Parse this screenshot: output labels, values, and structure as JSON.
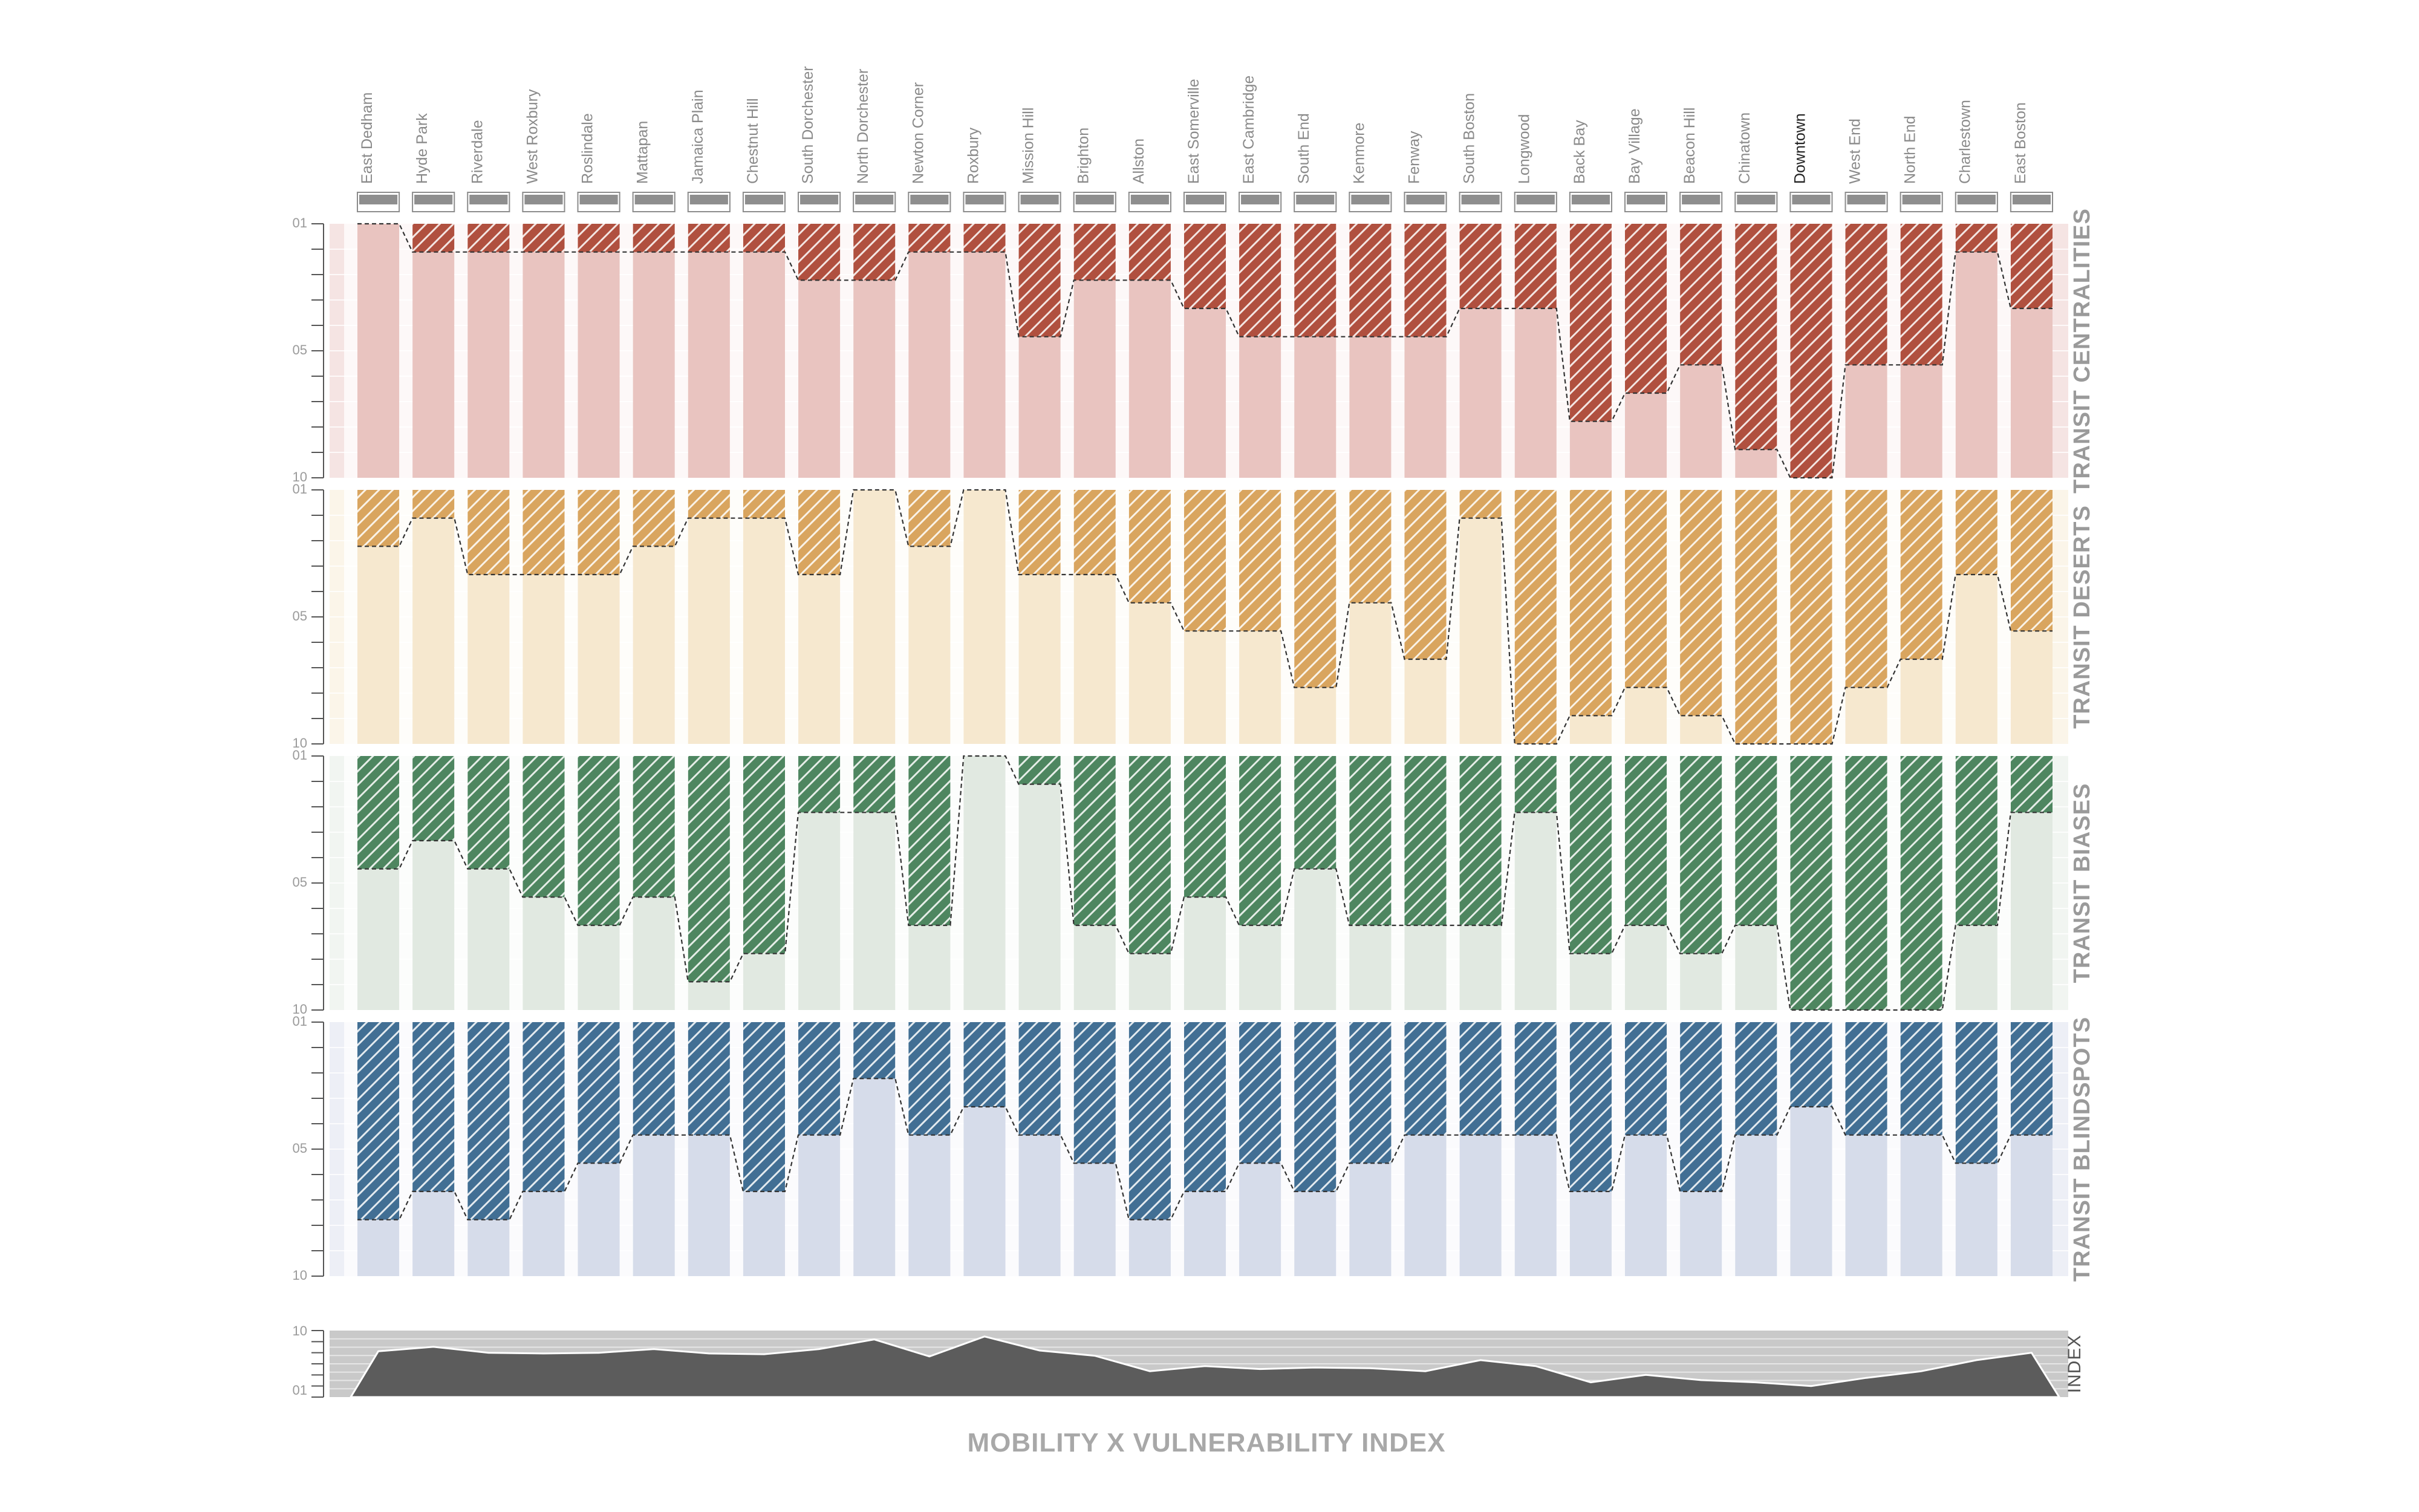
{
  "chart_data": {
    "type": "area",
    "title": "",
    "xlabel": "MOBILITY X VULNERABILITY INDEX",
    "categories": [
      "East Dedham",
      "Hyde Park",
      "Riverdale",
      "West Roxbury",
      "Roslindale",
      "Mattapan",
      "Jamaica Plain",
      "Chestnut Hill",
      "South Dorchester",
      "North Dorchester",
      "Newton Corner",
      "Roxbury",
      "Mission Hill",
      "Brighton",
      "Allston",
      "East Somerville",
      "East Cambridge",
      "South End",
      "Kenmore",
      "Fenway",
      "South Boston",
      "Longwood",
      "Back Bay",
      "Bay Village",
      "Beacon Hill",
      "Chinatown",
      "Downtown",
      "West End",
      "North End",
      "Charlestown",
      "East Boston"
    ],
    "highlighted_category": "Downtown",
    "series": [
      {
        "name": "TRANSIT CENTRALITIES",
        "color": "#b0503f",
        "fill": "#e9c4c0",
        "ylim": [
          0.1,
          1.0
        ],
        "tick_labels": [
          "01",
          "05",
          "10"
        ],
        "values": [
          0.1,
          0.2,
          0.2,
          0.2,
          0.2,
          0.2,
          0.2,
          0.2,
          0.3,
          0.3,
          0.2,
          0.2,
          0.5,
          0.3,
          0.3,
          0.4,
          0.5,
          0.5,
          0.5,
          0.5,
          0.4,
          0.4,
          0.8,
          0.7,
          0.6,
          0.9,
          1.0,
          0.6,
          0.6,
          0.2,
          0.4
        ]
      },
      {
        "name": "TRANSIT DESERTS",
        "color": "#d9a55f",
        "fill": "#f6e8cf",
        "ylim": [
          0.1,
          1.0
        ],
        "tick_labels": [
          "01",
          "05",
          "10"
        ],
        "values": [
          0.3,
          0.2,
          0.4,
          0.4,
          0.4,
          0.3,
          0.2,
          0.2,
          0.4,
          0.1,
          0.3,
          0.1,
          0.4,
          0.4,
          0.5,
          0.6,
          0.6,
          0.8,
          0.5,
          0.7,
          0.2,
          1.0,
          0.9,
          0.8,
          0.9,
          1.0,
          1.0,
          0.8,
          0.7,
          0.4,
          0.6
        ]
      },
      {
        "name": "TRANSIT BIASES",
        "color": "#4e8660",
        "fill": "#e1e9e1",
        "ylim": [
          0.1,
          1.0
        ],
        "tick_labels": [
          "01",
          "05",
          "10"
        ],
        "values": [
          0.5,
          0.4,
          0.5,
          0.6,
          0.7,
          0.6,
          0.9,
          0.8,
          0.3,
          0.3,
          0.7,
          0.1,
          0.2,
          0.7,
          0.8,
          0.6,
          0.7,
          0.5,
          0.7,
          0.7,
          0.7,
          0.3,
          0.8,
          0.7,
          0.8,
          0.7,
          1.0,
          1.0,
          1.0,
          0.7,
          0.3
        ]
      },
      {
        "name": "TRANSIT BLINDSPOTS",
        "color": "#426f94",
        "fill": "#d6dcea",
        "ylim": [
          0.1,
          1.0
        ],
        "tick_labels": [
          "01",
          "05",
          "10"
        ],
        "values": [
          0.8,
          0.7,
          0.8,
          0.7,
          0.6,
          0.5,
          0.5,
          0.7,
          0.5,
          0.3,
          0.5,
          0.4,
          0.5,
          0.6,
          0.8,
          0.7,
          0.6,
          0.7,
          0.6,
          0.5,
          0.5,
          0.5,
          0.7,
          0.5,
          0.7,
          0.5,
          0.4,
          0.5,
          0.5,
          0.6,
          0.5
        ]
      }
    ],
    "index": {
      "name": "INDEX",
      "tick_labels": [
        "10",
        "01"
      ],
      "ylim": [
        0.1,
        1.0
      ],
      "values": [
        0.72,
        0.78,
        0.7,
        0.69,
        0.7,
        0.75,
        0.69,
        0.68,
        0.75,
        0.88,
        0.65,
        0.92,
        0.73,
        0.66,
        0.45,
        0.52,
        0.48,
        0.5,
        0.49,
        0.45,
        0.6,
        0.52,
        0.3,
        0.4,
        0.33,
        0.3,
        0.25,
        0.36,
        0.45,
        0.6,
        0.7
      ]
    }
  }
}
